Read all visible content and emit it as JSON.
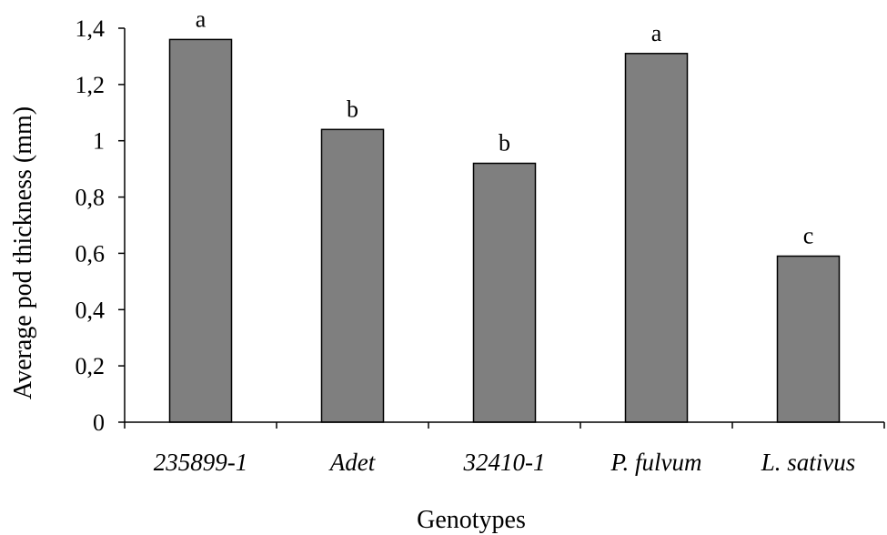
{
  "chart_data": {
    "type": "bar",
    "categories": [
      "235899-1",
      "Adet",
      "32410-1",
      "P. fulvum",
      "L. sativus"
    ],
    "values": [
      1.36,
      1.04,
      0.92,
      1.31,
      0.59
    ],
    "significance_letters": [
      "a",
      "b",
      "b",
      "a",
      "c"
    ],
    "xlabel": "Genotypes",
    "ylabel": "Average pod thickness (mm)",
    "ylim": [
      0,
      1.4
    ],
    "yticks": [
      0,
      0.2,
      0.4,
      0.6,
      0.8,
      1,
      1.2,
      1.4
    ],
    "ytick_labels": [
      "0",
      "0,2",
      "0,4",
      "0,6",
      "0,8",
      "1",
      "1,2",
      "1,4"
    ],
    "grid": false,
    "legend": "none",
    "colors": {
      "bar_fill": "#7f7f7f",
      "bar_stroke": "#000000",
      "axis": "#000000",
      "background": "#ffffff"
    }
  }
}
